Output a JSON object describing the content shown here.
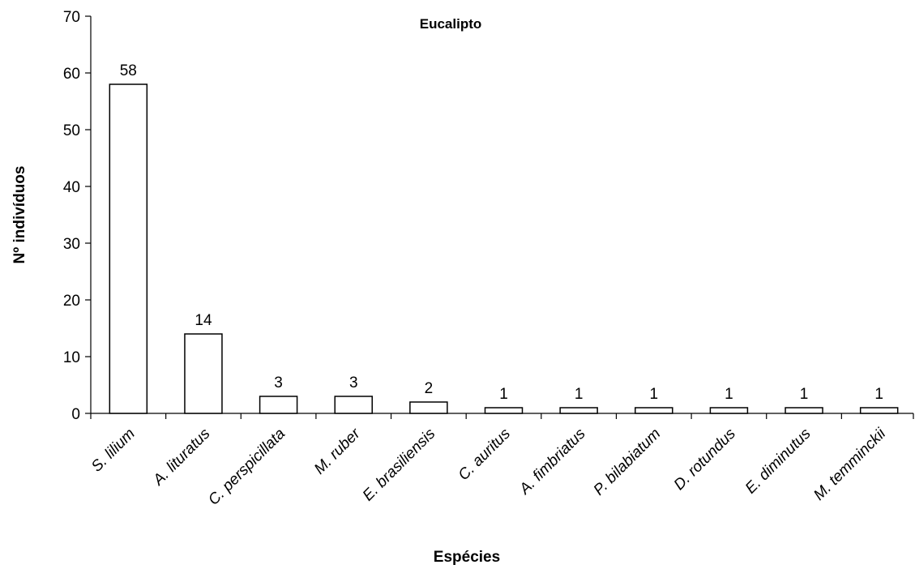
{
  "chart_data": {
    "type": "bar",
    "title": "Eucalipto",
    "xlabel": "Espécies",
    "ylabel": "Nº indivíduos",
    "categories": [
      "S. lilium",
      "A. lituratus",
      "C. perspicillata",
      "M. ruber",
      "E. brasiliensis",
      "C. auritus",
      "A. fimbriatus",
      "P. bilabiatum",
      "D. rotundus",
      "E. diminutus",
      "M. temminckii"
    ],
    "values": [
      58,
      14,
      3,
      3,
      2,
      1,
      1,
      1,
      1,
      1,
      1
    ],
    "data_labels": [
      "58",
      "14",
      "3",
      "3",
      "2",
      "1",
      "1",
      "1",
      "1",
      "1",
      "1"
    ],
    "ylim": [
      0,
      70
    ],
    "yticks": [
      0,
      10,
      20,
      30,
      40,
      50,
      60,
      70
    ],
    "ytick_labels": [
      "0",
      "10",
      "20",
      "30",
      "40",
      "50",
      "60",
      "70"
    ],
    "grid": false,
    "legend": "none",
    "bar_fill": "#ffffff",
    "bar_stroke": "#000000"
  }
}
